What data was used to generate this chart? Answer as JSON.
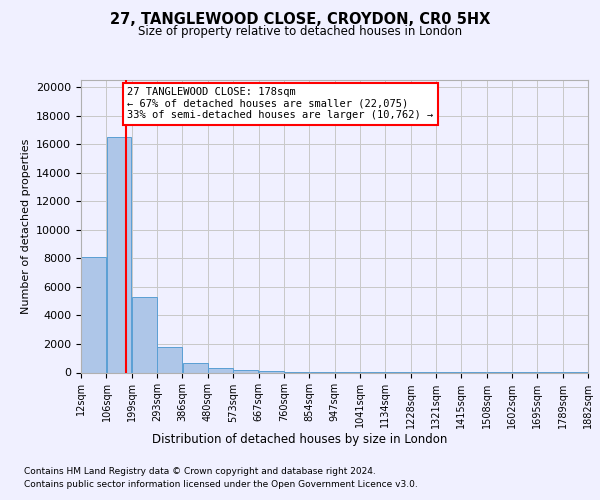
{
  "title": "27, TANGLEWOOD CLOSE, CROYDON, CR0 5HX",
  "subtitle": "Size of property relative to detached houses in London",
  "xlabel": "Distribution of detached houses by size in London",
  "ylabel": "Number of detached properties",
  "bar_values": [
    8100,
    16500,
    5300,
    1800,
    650,
    320,
    160,
    100,
    60,
    40,
    20,
    15,
    10,
    8,
    6,
    5,
    4,
    3,
    2,
    1
  ],
  "bin_edges": [
    12,
    106,
    199,
    293,
    386,
    480,
    573,
    667,
    760,
    854,
    947,
    1041,
    1134,
    1228,
    1321,
    1415,
    1508,
    1602,
    1695,
    1789,
    1882
  ],
  "tick_labels": [
    "12sqm",
    "106sqm",
    "199sqm",
    "293sqm",
    "386sqm",
    "480sqm",
    "573sqm",
    "667sqm",
    "760sqm",
    "854sqm",
    "947sqm",
    "1041sqm",
    "1134sqm",
    "1228sqm",
    "1321sqm",
    "1415sqm",
    "1508sqm",
    "1602sqm",
    "1695sqm",
    "1789sqm",
    "1882sqm"
  ],
  "bar_color": "#aec6e8",
  "bar_edge_color": "#5a9fd4",
  "vline_x": 178,
  "vline_color": "red",
  "annotation_text": "27 TANGLEWOOD CLOSE: 178sqm\n← 67% of detached houses are smaller (22,075)\n33% of semi-detached houses are larger (10,762) →",
  "annotation_box_color": "white",
  "annotation_box_edge_color": "red",
  "ylim": [
    0,
    20500
  ],
  "yticks": [
    0,
    2000,
    4000,
    6000,
    8000,
    10000,
    12000,
    14000,
    16000,
    18000,
    20000
  ],
  "footer_line1": "Contains HM Land Registry data © Crown copyright and database right 2024.",
  "footer_line2": "Contains public sector information licensed under the Open Government Licence v3.0.",
  "background_color": "#f0f0ff",
  "grid_color": "#c8c8c8"
}
